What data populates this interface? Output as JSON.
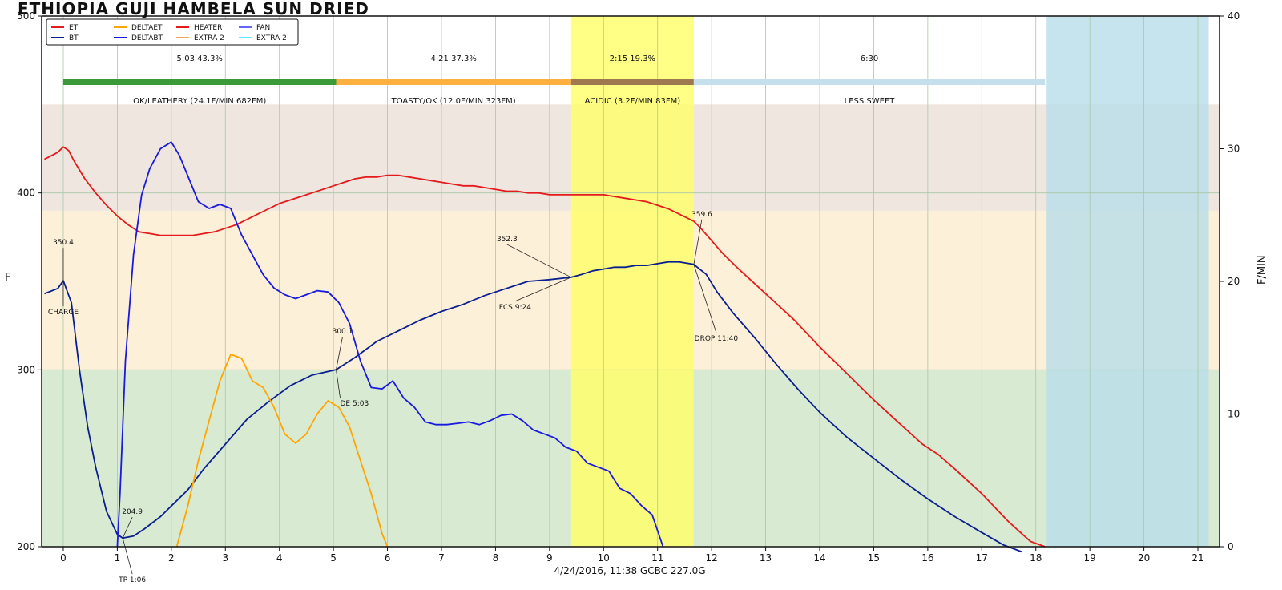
{
  "chart_data": {
    "type": "line",
    "title": "ETHIOPIA GUJI HAMBELA SUN DRIED",
    "ylabel": "F",
    "y2label": "F/MIN",
    "footer": "4/24/2016, 11:38   GCBC   227.0G",
    "xlim": [
      -0.4,
      21.4
    ],
    "ylim": [
      200,
      500
    ],
    "y2lim": [
      0,
      40
    ],
    "xticks": [
      "0",
      "1",
      "2",
      "3",
      "4",
      "5",
      "6",
      "7",
      "8",
      "9",
      "10",
      "11",
      "12",
      "13",
      "14",
      "15",
      "16",
      "17",
      "18",
      "19",
      "20",
      "21"
    ],
    "yticks": [
      "200",
      "300",
      "400",
      "500"
    ],
    "y2ticks": [
      "0",
      "10",
      "20",
      "30",
      "40"
    ],
    "grid": true,
    "legend_position": "top-left",
    "legend": [
      {
        "label": "ET",
        "color": "#e41a1c"
      },
      {
        "label": "BT",
        "color": "#0a1f8f"
      },
      {
        "label": "DELTAET",
        "color": "#ffa500"
      },
      {
        "label": "DELTABT",
        "color": "#1a1adf"
      },
      {
        "label": "HEATER",
        "color": "#e41a1c"
      },
      {
        "label": "EXTRA 2",
        "color": "#f4a460"
      },
      {
        "label": "FAN",
        "color": "#6666ff"
      },
      {
        "label": "EXTRA 2",
        "color": "#66e6ff"
      }
    ],
    "bands": [
      {
        "y_from": 200,
        "y_to": 300,
        "color": "#d9ead3"
      },
      {
        "y_from": 300,
        "y_to": 390,
        "color": "#fdf0d8"
      },
      {
        "y_from": 390,
        "y_to": 450,
        "color": "#eee6df"
      }
    ],
    "phases": [
      {
        "time": "5:03",
        "percent": "43.3%",
        "label": "OK/LEATHERY (24.1F/MIN  682FM)",
        "x_from": 0,
        "x_to": 5.05,
        "color": "#3a9a3a"
      },
      {
        "time": "4:21",
        "percent": "37.3%",
        "label": "TOASTY/OK (12.0F/MIN  323FM)",
        "x_from": 5.05,
        "x_to": 9.4,
        "color": "#fbb040"
      },
      {
        "time": "2:15",
        "percent": "19.3%",
        "label": "ACIDIC (3.2F/MIN  83FM)",
        "x_from": 9.4,
        "x_to": 11.67,
        "color": "#a07850"
      },
      {
        "time": "6:30",
        "label": "LESS SWEET",
        "x_from": 11.67,
        "x_to": 18.17,
        "color": "#c5e0ec"
      }
    ],
    "highlight_regions": [
      {
        "x_from": 9.4,
        "x_to": 11.67,
        "color": "#ffff66"
      },
      {
        "x_from": 18.2,
        "x_to": 21.2,
        "color": "#b8dde8"
      }
    ],
    "annotations": [
      {
        "text": "350.4",
        "x": 0,
        "y": 350.4
      },
      {
        "text": "CHARGE",
        "x": 0,
        "y": 350.4
      },
      {
        "text": "204.9",
        "x": 1.1,
        "y": 204.9
      },
      {
        "text": "TP 1:06",
        "x": 1.1,
        "y": 204.9
      },
      {
        "text": "300.1",
        "x": 5.05,
        "y": 300.1
      },
      {
        "text": "DE 5:03",
        "x": 5.05,
        "y": 300.1
      },
      {
        "text": "352.3",
        "x": 9.4,
        "y": 352.3
      },
      {
        "text": "FCS 9:24",
        "x": 9.4,
        "y": 352.3
      },
      {
        "text": "359.6",
        "x": 11.67,
        "y": 359.6
      },
      {
        "text": "DROP 11:40",
        "x": 11.67,
        "y": 359.6
      }
    ],
    "series": [
      {
        "name": "ET",
        "axis": "left",
        "color": "#e41a1c",
        "x": [
          -0.35,
          -0.1,
          0,
          0.1,
          0.2,
          0.4,
          0.6,
          0.8,
          1.0,
          1.2,
          1.4,
          1.6,
          1.8,
          2.0,
          2.2,
          2.4,
          2.6,
          2.8,
          3.0,
          3.2,
          3.4,
          3.6,
          3.8,
          4.0,
          4.2,
          4.4,
          4.6,
          4.8,
          5.0,
          5.2,
          5.4,
          5.6,
          5.8,
          6.0,
          6.2,
          6.4,
          6.6,
          6.8,
          7.0,
          7.2,
          7.4,
          7.6,
          7.8,
          8.0,
          8.2,
          8.4,
          8.6,
          8.8,
          9.0,
          9.4,
          9.8,
          10.0,
          10.2,
          10.4,
          10.6,
          10.8,
          11.0,
          11.2,
          11.4,
          11.67,
          11.8,
          12,
          12.2,
          12.5,
          13,
          13.5,
          14,
          14.5,
          15,
          15.5,
          15.9,
          16.2,
          16.5,
          17,
          17.5,
          17.9,
          18.17
        ],
        "y": [
          419,
          423,
          426,
          424,
          418,
          408,
          400,
          393,
          387,
          382,
          378,
          377,
          376,
          376,
          376,
          376,
          377,
          378,
          380,
          382,
          385,
          388,
          391,
          394,
          396,
          398,
          400,
          402,
          404,
          406,
          408,
          409,
          409,
          410,
          410,
          409,
          408,
          407,
          406,
          405,
          404,
          404,
          403,
          402,
          401,
          401,
          400,
          400,
          399,
          399,
          399,
          399,
          398,
          397,
          396,
          395,
          393,
          391,
          388,
          384,
          380,
          373,
          366,
          357,
          343,
          329,
          313,
          298,
          283,
          269,
          258,
          252,
          244,
          230,
          214,
          203,
          200
        ]
      },
      {
        "name": "BT",
        "axis": "left",
        "color": "#0a1f8f",
        "x": [
          -0.35,
          -0.1,
          0,
          0.15,
          0.3,
          0.45,
          0.6,
          0.8,
          1.0,
          1.1,
          1.3,
          1.5,
          1.8,
          2.0,
          2.3,
          2.6,
          3.0,
          3.4,
          3.8,
          4.2,
          4.6,
          5.05,
          5.4,
          5.8,
          6.2,
          6.6,
          7.0,
          7.4,
          7.8,
          8.2,
          8.6,
          9.0,
          9.4,
          9.6,
          9.8,
          10.0,
          10.2,
          10.4,
          10.6,
          10.8,
          11.0,
          11.2,
          11.4,
          11.67,
          11.9,
          12.1,
          12.4,
          12.8,
          13.2,
          13.6,
          14,
          14.5,
          15,
          15.5,
          16,
          16.5,
          17,
          17.4,
          17.75
        ],
        "y": [
          343,
          346,
          350.4,
          338,
          300,
          268,
          245,
          220,
          207,
          204.9,
          206,
          210,
          217,
          223,
          232,
          244,
          258,
          272,
          282,
          291,
          297,
          300.1,
          307,
          316,
          322,
          328,
          333,
          337,
          342,
          346,
          350,
          351,
          352.3,
          354,
          356,
          357,
          358,
          358,
          359,
          359,
          360,
          361,
          361,
          359.6,
          354,
          344,
          332,
          318,
          303,
          289,
          276,
          262,
          250,
          238,
          227,
          217,
          208,
          201,
          197
        ]
      },
      {
        "name": "DELTAET",
        "axis": "right",
        "color": "#ffa500",
        "x": [
          2.1,
          2.3,
          2.5,
          2.7,
          2.9,
          3.1,
          3.3,
          3.5,
          3.7,
          3.9,
          4.1,
          4.3,
          4.5,
          4.7,
          4.9,
          5.1,
          5.3,
          5.5,
          5.7,
          5.9,
          6.0
        ],
        "y": [
          0,
          3,
          6.5,
          9.5,
          12.5,
          14.5,
          14.2,
          12.5,
          12,
          10.5,
          8.5,
          7.8,
          8.5,
          10,
          11,
          10.5,
          9,
          6.5,
          4,
          1,
          0
        ]
      },
      {
        "name": "DELTABT",
        "axis": "right",
        "color": "#1a1adf",
        "x": [
          1.0,
          1.05,
          1.15,
          1.3,
          1.45,
          1.6,
          1.8,
          2.0,
          2.15,
          2.3,
          2.5,
          2.7,
          2.9,
          3.1,
          3.3,
          3.5,
          3.7,
          3.9,
          4.1,
          4.3,
          4.5,
          4.7,
          4.9,
          5.1,
          5.3,
          5.5,
          5.7,
          5.9,
          6.1,
          6.3,
          6.5,
          6.7,
          6.9,
          7.1,
          7.3,
          7.5,
          7.7,
          7.9,
          8.1,
          8.3,
          8.5,
          8.7,
          8.9,
          9.1,
          9.3,
          9.5,
          9.7,
          9.9,
          10.1,
          10.3,
          10.5,
          10.7,
          10.9,
          11.1
        ],
        "y": [
          0,
          4,
          14,
          22,
          26.5,
          28.5,
          30,
          30.5,
          29.5,
          28,
          26,
          25.5,
          25.8,
          25.5,
          23.5,
          22,
          20.5,
          19.5,
          19,
          18.7,
          19,
          19.3,
          19.2,
          18.4,
          16.8,
          14,
          12,
          11.9,
          12.5,
          11.2,
          10.5,
          9.4,
          9.2,
          9.2,
          9.3,
          9.4,
          9.2,
          9.5,
          9.9,
          10,
          9.5,
          8.8,
          8.5,
          8.2,
          7.5,
          7.2,
          6.3,
          6,
          5.7,
          4.4,
          4,
          3.1,
          2.4,
          0
        ]
      }
    ]
  }
}
